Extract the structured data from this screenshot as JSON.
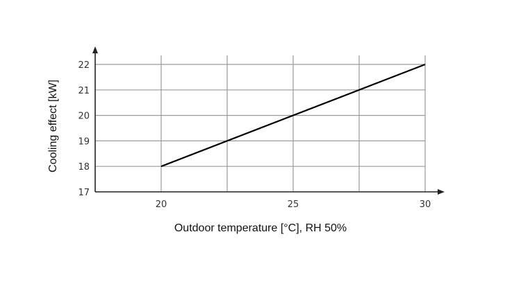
{
  "chart_data": {
    "type": "line",
    "xlabel": "Outdoor temperature [°C], RH 50%",
    "ylabel": "Cooling effect [kW]",
    "xlim": [
      17.5,
      30
    ],
    "ylim": [
      17,
      22
    ],
    "x_ticks": [
      20,
      25,
      30
    ],
    "x_ticks_labeled": [
      20,
      25,
      30
    ],
    "x_gridlines": [
      20,
      22.5,
      25,
      27.5,
      30
    ],
    "y_ticks": [
      17,
      18,
      19,
      20,
      21,
      22
    ],
    "grid": true,
    "series": [
      {
        "x": [
          20,
          30
        ],
        "y": [
          18,
          22
        ],
        "color": "#000000"
      }
    ]
  }
}
